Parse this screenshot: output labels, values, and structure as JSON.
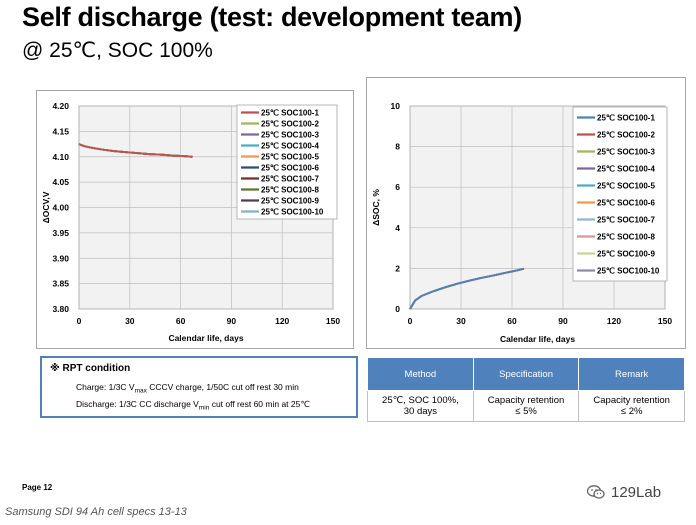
{
  "header": {
    "title": "Self discharge (test: development team)",
    "subtitle": "@ 25℃, SOC 100%"
  },
  "chart_data": [
    {
      "type": "line",
      "xlabel": "Calendar life, days",
      "ylabel": "ΔOCV,V",
      "xlim": [
        0,
        150
      ],
      "ylim": [
        3.8,
        4.2
      ],
      "x_ticks": [
        "0",
        "30",
        "60",
        "90",
        "120",
        "150"
      ],
      "y_ticks": [
        "4.20",
        "4.15",
        "4.10",
        "4.05",
        "4.00",
        "3.95",
        "3.90",
        "3.85",
        "3.80"
      ],
      "grid": true,
      "legend_position": "top-right",
      "x": [
        0,
        3,
        7,
        14,
        21,
        28,
        35,
        42,
        49,
        56,
        63,
        67
      ],
      "series": [
        {
          "name": "25℃ SOC100-1",
          "color": "#c0504d",
          "values": [
            4.125,
            4.121,
            4.118,
            4.114,
            4.111,
            4.109,
            4.107,
            4.105,
            4.104,
            4.102,
            4.101,
            4.1
          ]
        },
        {
          "name": "25℃ SOC100-2",
          "color": "#9bbb59",
          "values": [
            4.125,
            4.121,
            4.118,
            4.114,
            4.111,
            4.109,
            4.107,
            4.105,
            4.104,
            4.102,
            4.101,
            4.1
          ]
        },
        {
          "name": "25℃ SOC100-3",
          "color": "#8064a2",
          "values": [
            4.125,
            4.121,
            4.118,
            4.114,
            4.111,
            4.109,
            4.107,
            4.105,
            4.104,
            4.102,
            4.101,
            4.1
          ]
        },
        {
          "name": "25℃ SOC100-4",
          "color": "#4bacc6",
          "values": [
            4.125,
            4.121,
            4.118,
            4.114,
            4.111,
            4.109,
            4.107,
            4.105,
            4.104,
            4.102,
            4.101,
            4.1
          ]
        },
        {
          "name": "25℃ SOC100-5",
          "color": "#f79646",
          "values": [
            4.125,
            4.121,
            4.118,
            4.114,
            4.111,
            4.109,
            4.107,
            4.105,
            4.104,
            4.102,
            4.101,
            4.1
          ]
        },
        {
          "name": "25℃ SOC100-6",
          "color": "#2c4d75",
          "values": [
            4.125,
            4.121,
            4.118,
            4.114,
            4.111,
            4.109,
            4.107,
            4.105,
            4.104,
            4.102,
            4.101,
            4.1
          ]
        },
        {
          "name": "25℃ SOC100-7",
          "color": "#772c2a",
          "values": [
            4.125,
            4.121,
            4.118,
            4.114,
            4.111,
            4.109,
            4.107,
            4.105,
            4.104,
            4.102,
            4.101,
            4.1
          ]
        },
        {
          "name": "25℃ SOC100-8",
          "color": "#5f7530",
          "values": [
            4.125,
            4.121,
            4.118,
            4.114,
            4.111,
            4.109,
            4.107,
            4.105,
            4.104,
            4.102,
            4.101,
            4.1
          ]
        },
        {
          "name": "25℃ SOC100-9",
          "color": "#4d3b62",
          "values": [
            4.125,
            4.121,
            4.118,
            4.114,
            4.111,
            4.109,
            4.107,
            4.105,
            4.104,
            4.102,
            4.101,
            4.1
          ]
        },
        {
          "name": "25℃ SOC100-10",
          "color": "#7fb5c8",
          "values": [
            4.125,
            4.121,
            4.118,
            4.114,
            4.111,
            4.109,
            4.107,
            4.105,
            4.104,
            4.102,
            4.101,
            4.1
          ]
        }
      ]
    },
    {
      "type": "line",
      "xlabel": "Calendar life, days",
      "ylabel": "ΔSOC, %",
      "xlim": [
        0,
        150
      ],
      "ylim": [
        0,
        10
      ],
      "x_ticks": [
        "0",
        "30",
        "60",
        "90",
        "120",
        "150"
      ],
      "y_ticks": [
        "10",
        "8",
        "6",
        "4",
        "2",
        "0"
      ],
      "grid": true,
      "legend_position": "top-right",
      "x": [
        0,
        3,
        7,
        14,
        21,
        28,
        35,
        42,
        49,
        56,
        63,
        67
      ],
      "series": [
        {
          "name": "25℃ SOC100-1",
          "color": "#4f81bd",
          "values": [
            0,
            0.42,
            0.65,
            0.88,
            1.08,
            1.25,
            1.4,
            1.53,
            1.65,
            1.78,
            1.9,
            1.98
          ]
        },
        {
          "name": "25℃ SOC100-2",
          "color": "#c0504d",
          "values": [
            0,
            0.42,
            0.65,
            0.88,
            1.08,
            1.25,
            1.4,
            1.53,
            1.65,
            1.78,
            1.9,
            1.98
          ]
        },
        {
          "name": "25℃ SOC100-3",
          "color": "#9bbb59",
          "values": [
            0,
            0.42,
            0.65,
            0.88,
            1.08,
            1.25,
            1.4,
            1.53,
            1.65,
            1.78,
            1.9,
            1.98
          ]
        },
        {
          "name": "25℃ SOC100-4",
          "color": "#8064a2",
          "values": [
            0,
            0.42,
            0.65,
            0.88,
            1.08,
            1.25,
            1.4,
            1.53,
            1.65,
            1.78,
            1.9,
            1.98
          ]
        },
        {
          "name": "25℃ SOC100-5",
          "color": "#4bacc6",
          "values": [
            0,
            0.42,
            0.65,
            0.88,
            1.08,
            1.25,
            1.4,
            1.53,
            1.65,
            1.78,
            1.9,
            1.98
          ]
        },
        {
          "name": "25℃ SOC100-6",
          "color": "#f79646",
          "values": [
            0,
            0.42,
            0.65,
            0.88,
            1.08,
            1.25,
            1.4,
            1.53,
            1.65,
            1.78,
            1.9,
            1.98
          ]
        },
        {
          "name": "25℃ SOC100-7",
          "color": "#95b3d7",
          "values": [
            0,
            0.42,
            0.65,
            0.88,
            1.08,
            1.25,
            1.4,
            1.53,
            1.65,
            1.78,
            1.9,
            1.98
          ]
        },
        {
          "name": "25℃ SOC100-8",
          "color": "#d99694",
          "values": [
            0,
            0.42,
            0.65,
            0.88,
            1.08,
            1.25,
            1.4,
            1.53,
            1.65,
            1.78,
            1.9,
            1.98
          ]
        },
        {
          "name": "25℃ SOC100-9",
          "color": "#c3d69b",
          "values": [
            0,
            0.42,
            0.65,
            0.88,
            1.08,
            1.25,
            1.4,
            1.53,
            1.65,
            1.78,
            1.9,
            1.98
          ]
        },
        {
          "name": "25℃ SOC100-10",
          "color": "#8c8ca6",
          "values": [
            0,
            0.42,
            0.65,
            0.88,
            1.08,
            1.25,
            1.4,
            1.53,
            1.65,
            1.78,
            1.9,
            1.98
          ]
        }
      ]
    }
  ],
  "rpt": {
    "title": "※ RPT condition",
    "charge": {
      "pre": "Charge: 1/3C V",
      "sub": "max",
      "post": " CCCV charge, 1/50C cut off rest 30 min"
    },
    "discharge": {
      "pre": "Discharge: 1/3C CC discharge V",
      "sub": "min",
      "post": " cut off  rest 60 min at 25℃"
    }
  },
  "spec_table": {
    "headers": [
      "Method",
      "Specification",
      "Remark"
    ],
    "row": [
      [
        "25℃, SOC 100%,",
        "30 days"
      ],
      [
        "Capacity retention",
        "≤ 5%"
      ],
      [
        "Capacity retention",
        "≤ 2%"
      ]
    ]
  },
  "footer": {
    "page": "Page 12",
    "brand": "129Lab",
    "caption": "Samsung SDI 94 Ah cell specs 13-13"
  },
  "colors": {
    "accent": "#4f81bd",
    "wechat_icon": "#666666"
  }
}
